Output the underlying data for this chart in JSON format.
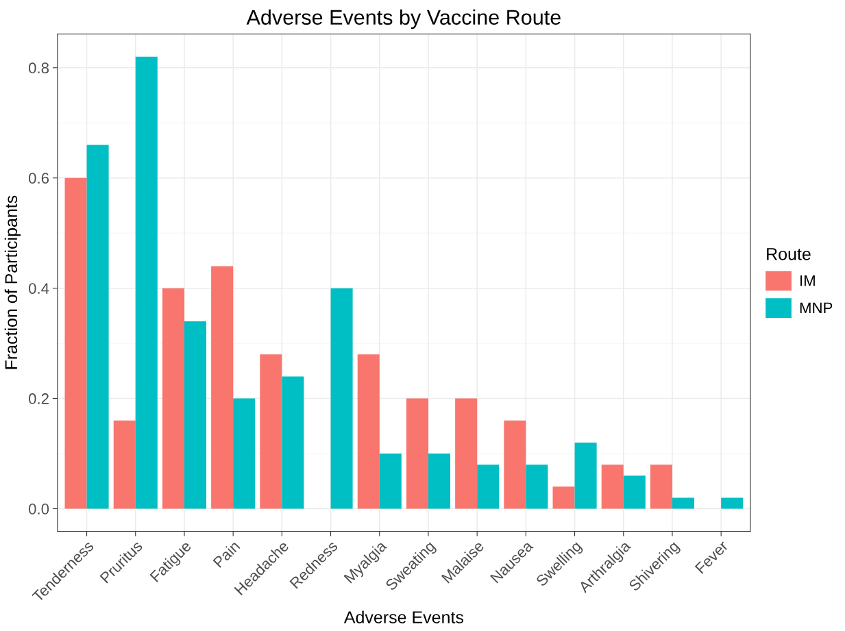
{
  "chart_data": {
    "type": "bar",
    "title": "Adverse Events by Vaccine Route",
    "xlabel": "Adverse Events",
    "ylabel": "Fraction of Participants",
    "legend_title": "Route",
    "categories": [
      "Tenderness",
      "Pruritus",
      "Fatigue",
      "Pain",
      "Headache",
      "Redness",
      "Myalgia",
      "Sweating",
      "Malaise",
      "Nausea",
      "Swelling",
      "Arthralgia",
      "Shivering",
      "Fever"
    ],
    "series": [
      {
        "name": "IM",
        "color": "#f8766d",
        "values": [
          0.6,
          0.16,
          0.4,
          0.44,
          0.28,
          0,
          0.28,
          0.2,
          0.2,
          0.16,
          0.04,
          0.08,
          0.08,
          0
        ]
      },
      {
        "name": "MNP",
        "color": "#00bfc4",
        "values": [
          0.66,
          0.82,
          0.34,
          0.2,
          0.24,
          0.4,
          0.1,
          0.1,
          0.08,
          0.08,
          0.12,
          0.06,
          0.02,
          0.02
        ]
      }
    ],
    "ylim": [
      -0.041,
      0.861
    ],
    "yticks": [
      {
        "value": 0,
        "label": "0.0"
      },
      0.2,
      0.4,
      0.6,
      0.8
    ],
    "grid": true,
    "legend": "right"
  }
}
